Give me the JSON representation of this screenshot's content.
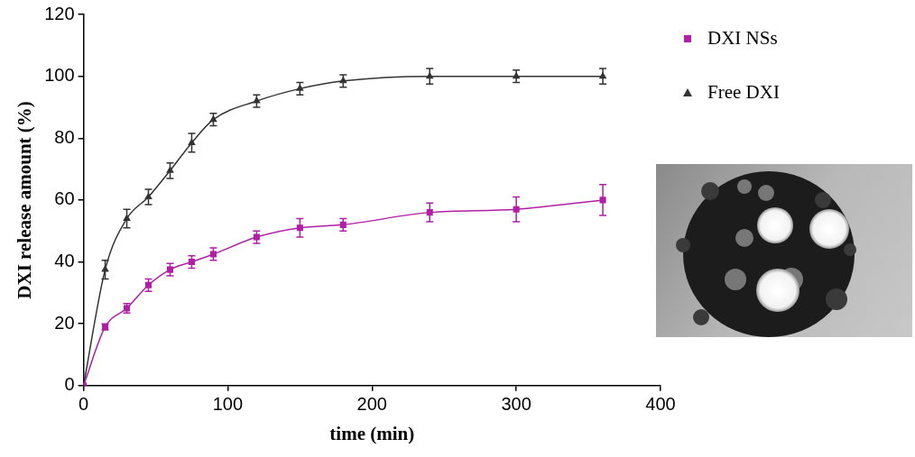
{
  "chart_data": {
    "type": "line",
    "x_label": "time (min)",
    "y_label": "DXI release amount (%)",
    "x": [
      0,
      15,
      30,
      45,
      60,
      75,
      90,
      120,
      150,
      180,
      240,
      300,
      360
    ],
    "series": [
      {
        "name": "DXI NSs",
        "color": "#b01fa6",
        "marker": "square",
        "values": [
          0,
          19,
          25,
          32.5,
          37.5,
          40,
          42.5,
          48,
          51,
          52,
          56,
          57,
          60
        ],
        "errors": [
          0,
          1,
          1.5,
          2,
          2,
          2,
          2,
          2,
          3,
          2,
          3,
          4,
          5
        ]
      },
      {
        "name": "Free DXI",
        "color": "#333333",
        "marker": "triangle",
        "values": [
          0,
          37.5,
          54,
          61,
          69.5,
          78.5,
          86,
          92,
          96,
          98.5,
          100,
          100,
          100
        ],
        "errors": [
          0,
          3,
          3,
          2.5,
          2.5,
          3,
          2,
          2,
          2,
          2,
          2.5,
          2,
          2.5
        ]
      }
    ],
    "xlim": [
      0,
      400
    ],
    "xticks": [
      0,
      100,
      200,
      300,
      400
    ],
    "ylim": [
      0,
      120
    ],
    "yticks": [
      0,
      20,
      40,
      60,
      80,
      100,
      120
    ],
    "grid": false,
    "legend": "right"
  }
}
